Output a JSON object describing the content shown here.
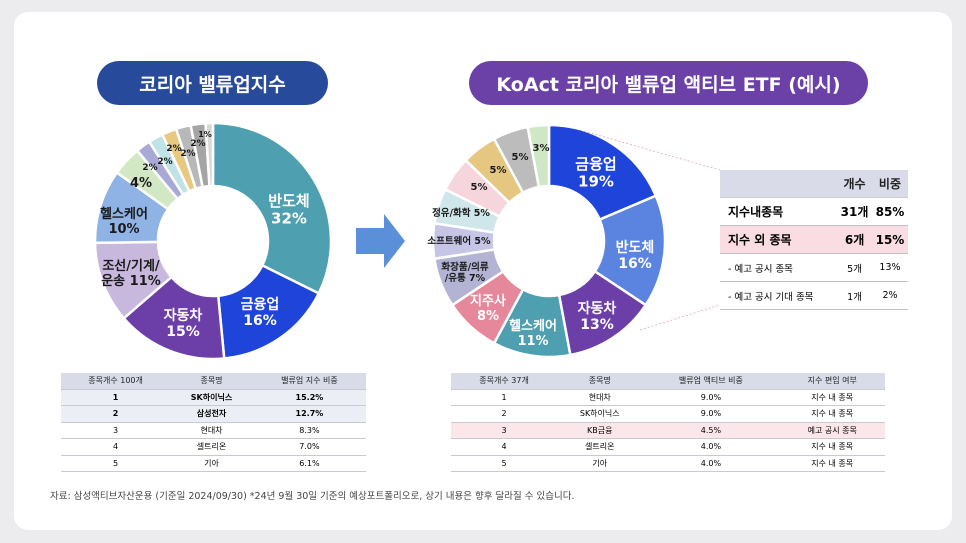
{
  "left_title": "코리아 밸류업지수",
  "right_title": "KoAct 코리아 밸류업 액티브 ETF (예시)",
  "chart_data": [
    {
      "type": "pie",
      "title": "코리아 밸류업지수",
      "slices": [
        {
          "label": "반도체",
          "value": 32,
          "color": "#4e9fb0"
        },
        {
          "label": "금융업",
          "value": 16,
          "color": "#1f44d9"
        },
        {
          "label": "자동차",
          "value": 15,
          "color": "#6c3fa8"
        },
        {
          "label": "조선/기계/운송",
          "value": 11,
          "color": "#c9b8dd"
        },
        {
          "label": "헬스케어",
          "value": 10,
          "color": "#90b3e6"
        },
        {
          "label": "",
          "value": 4,
          "color": "#d2e7c3"
        },
        {
          "label": "",
          "value": 2,
          "color": "#a9a9d6"
        },
        {
          "label": "",
          "value": 2,
          "color": "#bfe3e6"
        },
        {
          "label": "",
          "value": 2,
          "color": "#e8c981"
        },
        {
          "label": "",
          "value": 2,
          "color": "#b8b8b8"
        },
        {
          "label": "",
          "value": 2,
          "color": "#a5a5a5"
        },
        {
          "label": "",
          "value": 1,
          "color": "#d8d8d8"
        }
      ]
    },
    {
      "type": "pie",
      "title": "KoAct 코리아 밸류업 액티브 ETF (예시)",
      "slices": [
        {
          "label": "금융업",
          "value": 19,
          "color": "#1f44d9"
        },
        {
          "label": "반도체",
          "value": 16,
          "color": "#5b84e0"
        },
        {
          "label": "자동차",
          "value": 13,
          "color": "#6c3fa8"
        },
        {
          "label": "헬스케어",
          "value": 11,
          "color": "#4e9fb0"
        },
        {
          "label": "지주사",
          "value": 8,
          "color": "#e5889b"
        },
        {
          "label": "화장품/의류/유통",
          "value": 7,
          "color": "#b3b3d4"
        },
        {
          "label": "소프트웨어",
          "value": 5,
          "color": "#c7c5e6"
        },
        {
          "label": "정유/화학",
          "value": 5,
          "color": "#cfe7ea"
        },
        {
          "label": "",
          "value": 5,
          "color": "#f6d5dc"
        },
        {
          "label": "",
          "value": 5,
          "color": "#e6c781"
        },
        {
          "label": "",
          "value": 5,
          "color": "#bcbcbc"
        },
        {
          "label": "",
          "value": 3,
          "color": "#cfe7c4"
        }
      ]
    }
  ],
  "left_labels": {
    "l1": [
      "반도체",
      "32%"
    ],
    "l2": [
      "금융업",
      "16%"
    ],
    "l3": [
      "자동차",
      "15%"
    ],
    "l4": [
      "조선/기계/",
      "운송 11%"
    ],
    "l5": [
      "헬스케어",
      "10%"
    ],
    "s1": "4%",
    "s2": "2%",
    "s3": "2%",
    "s4": "2%",
    "s5": "2%",
    "s6": "2%",
    "s7": "1%"
  },
  "right_labels": {
    "r1": [
      "금융업",
      "19%"
    ],
    "r2": [
      "반도체",
      "16%"
    ],
    "r3": [
      "자동차",
      "13%"
    ],
    "r4": [
      "헬스케어",
      "11%"
    ],
    "r5": [
      "지주사",
      "8%"
    ],
    "r6": [
      "화장품/의류",
      "/유통 7%"
    ],
    "r7": "소프트웨어 5%",
    "r8": "정유/화학 5%",
    "r9": "5%",
    "r10": "5%",
    "r11": "5%",
    "r12": "3%"
  },
  "left_table": {
    "headers": [
      "종목개수 100개",
      "종목명",
      "밸류업 지수 비중"
    ],
    "rows": [
      [
        "1",
        "SK하이닉스",
        "15.2%"
      ],
      [
        "2",
        "삼성전자",
        "12.7%"
      ],
      [
        "3",
        "현대차",
        "8.3%"
      ],
      [
        "4",
        "셀트리온",
        "7.0%"
      ],
      [
        "5",
        "기아",
        "6.1%"
      ]
    ]
  },
  "right_table": {
    "headers": [
      "종목개수 37개",
      "종목명",
      "밸류업 액티브 비중",
      "지수 편입 여부"
    ],
    "rows": [
      [
        "1",
        "현대차",
        "9.0%",
        "지수 내 종목"
      ],
      [
        "2",
        "SK하이닉스",
        "9.0%",
        "지수 내 종목"
      ],
      [
        "3",
        "KB금융",
        "4.5%",
        "예고 공시 종목"
      ],
      [
        "4",
        "셀트리온",
        "4.0%",
        "지수 내 종목"
      ],
      [
        "5",
        "기아",
        "4.0%",
        "지수 내 종목"
      ]
    ]
  },
  "side_table": {
    "headers": [
      "",
      "개수",
      "비중"
    ],
    "rows": [
      [
        "지수내종목",
        "31개",
        "85%"
      ],
      [
        "지수 외 종목",
        "6개",
        "15%"
      ],
      [
        "- 예고 공시 종목",
        "5개",
        "13%"
      ],
      [
        "- 예고 공시 기대 종목",
        "1개",
        "2%"
      ]
    ]
  },
  "footer": "자료: 삼성액티브자산운용 (기준일 2024/09/30) *24년 9월 30일 기준의 예상포트폴리오로, 상기 내용은 향후 달라질 수 있습니다.",
  "colors": {
    "arrow": "#5b8fd8",
    "left_pill": "#274a9b",
    "right_pill": "#6b41a8"
  }
}
